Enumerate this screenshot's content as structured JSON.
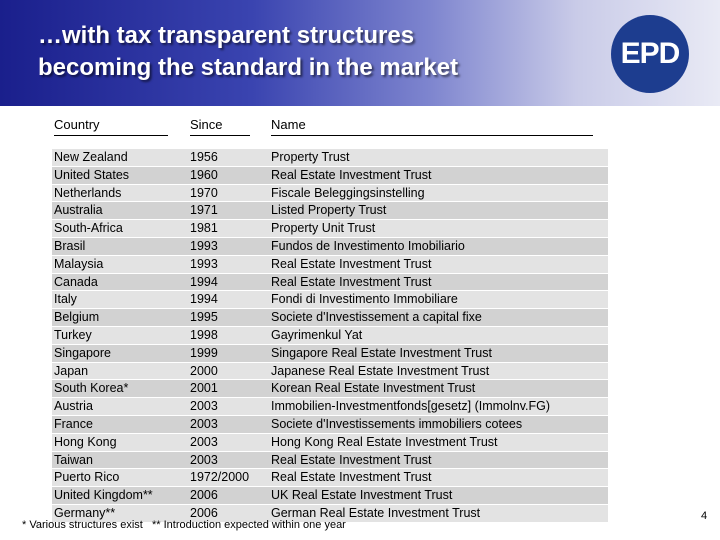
{
  "header": {
    "title_line1": "…with tax transparent structures",
    "title_line2": "becoming the standard in the market",
    "logo_text": "EPD",
    "colors": {
      "dark": "#1a1f8c",
      "light": "#e9eaf5",
      "logo_bg": "#1d3d8f"
    }
  },
  "table": {
    "columns": [
      "Country",
      "Since",
      "Name"
    ],
    "rows": [
      [
        "New Zealand",
        "1956",
        "Property Trust"
      ],
      [
        "United States",
        "1960",
        "Real Estate Investment Trust"
      ],
      [
        "Netherlands",
        "1970",
        "Fiscale Beleggingsinstelling"
      ],
      [
        "Australia",
        "1971",
        "Listed Property Trust"
      ],
      [
        "South-Africa",
        "1981",
        "Property Unit Trust"
      ],
      [
        "Brasil",
        "1993",
        "Fundos de Investimento Imobiliario"
      ],
      [
        "Malaysia",
        "1993",
        "Real Estate Investment Trust"
      ],
      [
        "Canada",
        "1994",
        "Real Estate Investment Trust"
      ],
      [
        "Italy",
        "1994",
        "Fondi di Investimento Immobiliare"
      ],
      [
        "Belgium",
        "1995",
        "Societe d'Investissement a capital fixe"
      ],
      [
        "Turkey",
        "1998",
        "Gayrimenkul Yat"
      ],
      [
        "Singapore",
        "1999",
        "Singapore Real Estate Investment Trust"
      ],
      [
        "Japan",
        "2000",
        "Japanese Real Estate Investment Trust"
      ],
      [
        "South Korea*",
        "2001",
        "Korean Real Estate Investment Trust"
      ],
      [
        "Austria",
        "2003",
        "Immobilien-Investmentfonds[gesetz] (Immolnv.FG)"
      ],
      [
        "France",
        "2003",
        "Societe d'Investissements immobiliers cotees"
      ],
      [
        "Hong Kong",
        "2003",
        "Hong Kong Real Estate Investment Trust"
      ],
      [
        "Taiwan",
        "2003",
        "Real Estate Investment Trust"
      ],
      [
        "Puerto Rico",
        "1972/2000",
        "Real Estate Investment Trust"
      ],
      [
        "United Kingdom**",
        "2006",
        "UK Real Estate Investment Trust"
      ],
      [
        "Germany**",
        "2006",
        "German Real Estate Investment Trust"
      ]
    ]
  },
  "footnote": "* Various structures exist   ** Introduction expected within one year",
  "page_number": "4"
}
